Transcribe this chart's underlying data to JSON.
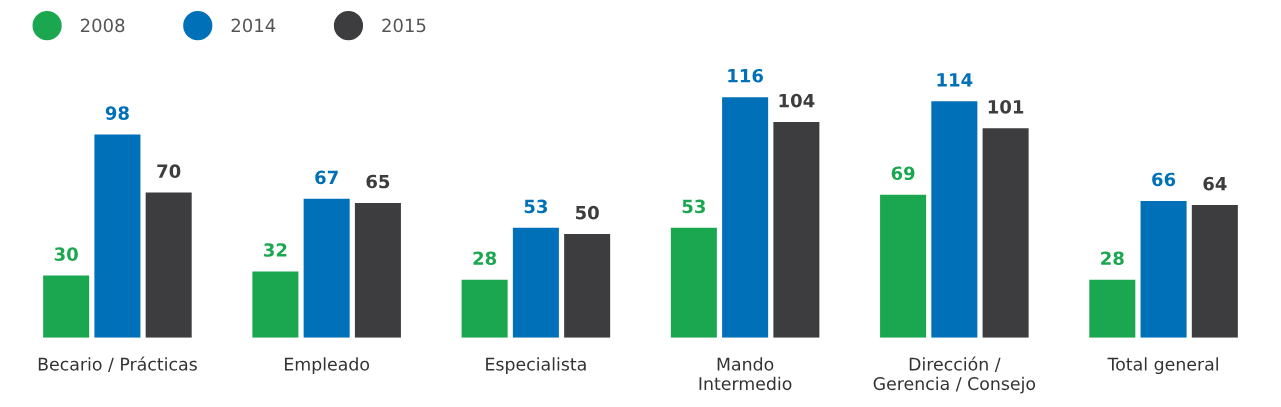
{
  "chart_data": {
    "type": "bar",
    "categories": [
      "Becario / Prácticas",
      "Empleado",
      "Especialista",
      "Mando\nIntermedio",
      "Dirección /\nGerencia / Consejo",
      "Total general"
    ],
    "series": [
      {
        "name": "2008",
        "color": "#1ba750",
        "values": [
          30,
          32,
          28,
          53,
          69,
          28
        ]
      },
      {
        "name": "2014",
        "color": "#0070b8",
        "values": [
          98,
          67,
          53,
          116,
          114,
          66
        ]
      },
      {
        "name": "2015",
        "color": "#3d3d3f",
        "values": [
          70,
          65,
          50,
          104,
          101,
          64
        ]
      }
    ],
    "data_labels": true,
    "legend": "top left",
    "grid": false
  }
}
